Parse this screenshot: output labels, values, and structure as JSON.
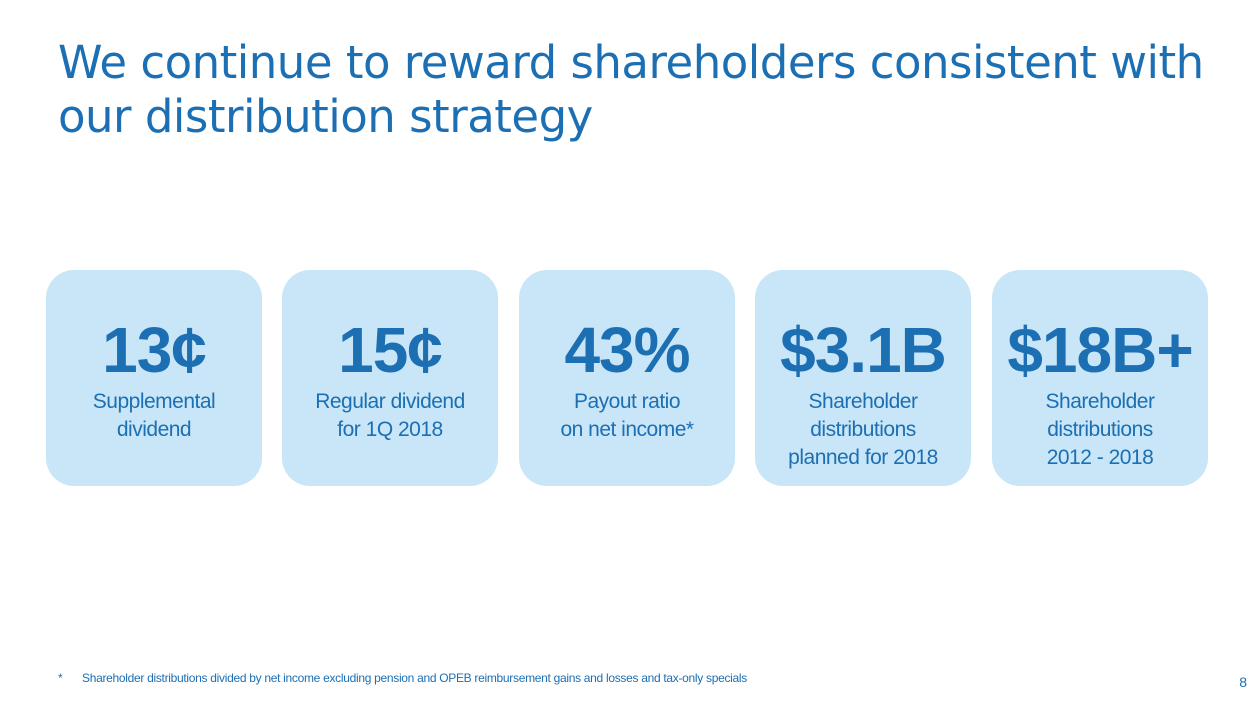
{
  "title": "We continue to reward shareholders consistent with our distribution strategy",
  "cards": [
    {
      "value": "13¢",
      "label_lines": [
        "Supplemental",
        "dividend"
      ]
    },
    {
      "value": "15¢",
      "label_lines": [
        "Regular dividend",
        "for 1Q 2018"
      ]
    },
    {
      "value": "43%",
      "label_lines": [
        "Payout ratio",
        "on net income*"
      ]
    },
    {
      "value": "$3.1B",
      "label_lines": [
        "Shareholder",
        "distributions",
        "planned for 2018"
      ]
    },
    {
      "value": "$18B+",
      "label_lines": [
        "Shareholder",
        "distributions",
        "2012 - 2018"
      ]
    }
  ],
  "footnote": {
    "mark": "*",
    "text": "Shareholder distributions divided by net income excluding pension and OPEB reimbursement gains and losses and tax-only specials"
  },
  "page_number": "8",
  "colors": {
    "text_blue": "#1c6fb3",
    "card_fill": "#c8e6f7",
    "background": "#ffffff"
  }
}
